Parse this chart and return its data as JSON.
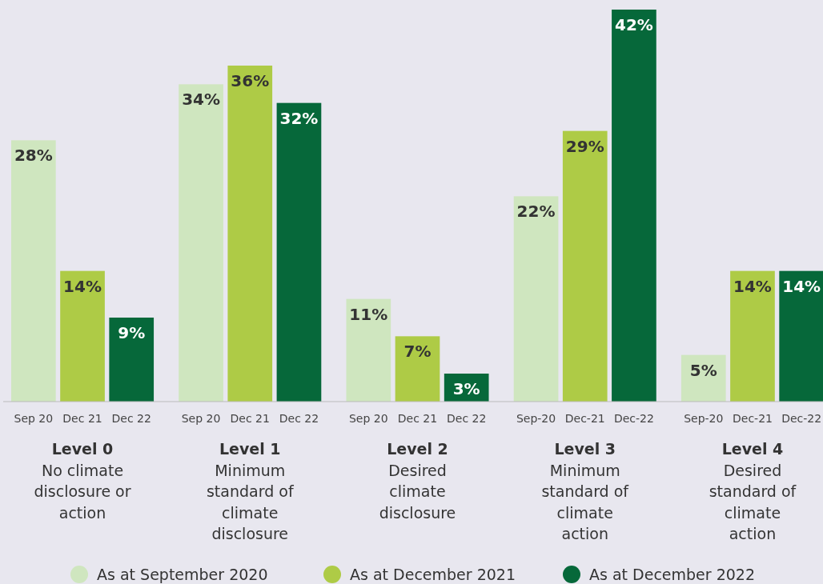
{
  "chart_data": {
    "type": "bar",
    "categories": [
      "Level 0\nNo climate\ndisclosure or\naction",
      "Level 1\nMinimum\nstandard of\nclimate\ndisclosure",
      "Level 2\nDesired\nclimate\ndisclosure",
      "Level 3\nMinimum\nstandard of\nclimate\naction",
      "Level 4\nDesired\nstandard of\nclimate\naction"
    ],
    "series": [
      {
        "name": "As at September 2020",
        "color": "#cfe6bf",
        "values": [
          28,
          34,
          11,
          22,
          5
        ],
        "value_labels": [
          "28%",
          "34%",
          "11%",
          "22%",
          "5%"
        ]
      },
      {
        "name": "As at December 2021",
        "color": "#aecb46",
        "values": [
          14,
          36,
          7,
          29,
          14
        ],
        "value_labels": [
          "14%",
          "36%",
          "7%",
          "29%",
          "14%"
        ]
      },
      {
        "name": "As at December 2022",
        "color": "#06683a",
        "values": [
          9,
          32,
          3,
          42,
          14
        ],
        "value_labels": [
          "9%",
          "32%",
          "3%",
          "42%",
          "14%"
        ]
      }
    ],
    "annotations": [
      "Sep 20",
      "Dec 21",
      "Dec 22",
      "Sep 20",
      "Dec 21",
      "Dec 22",
      "Sep 20",
      "Dec 21",
      "Dec 22",
      "Sep-20",
      "Dec-21",
      "Dec-22",
      "Sep-20",
      "Dec-21",
      "Dec-22"
    ],
    "legend": "bottom"
  }
}
